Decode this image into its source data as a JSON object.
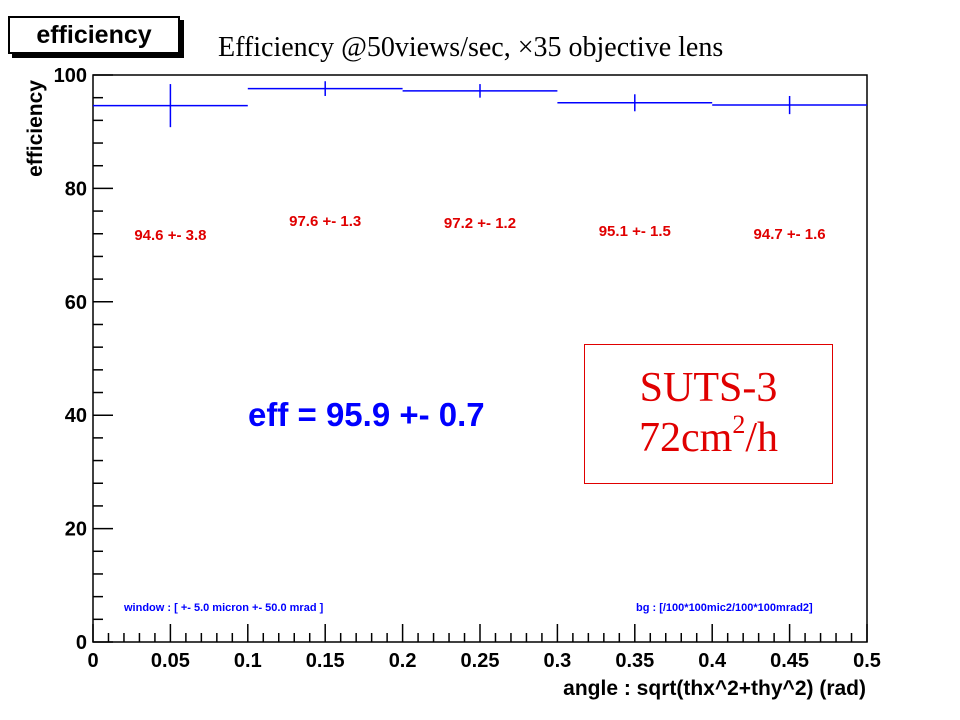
{
  "header": {
    "hist_title": "efficiency",
    "subtitle": "Efficiency @50views/sec, ×35 objective lens"
  },
  "annotations": {
    "total_eff": "eff = 95.9 +- 0.7",
    "window_note": "window : [ +- 5.0 micron  +- 50.0 mrad ]",
    "bg_note": "bg : [/100*100mic2/100*100mrad2]",
    "suts_line1": "SUTS-3",
    "suts_line2_base": "72cm",
    "suts_line2_sup": "2",
    "suts_line2_tail": "/h"
  },
  "colors": {
    "series": "#0000ff",
    "labels": "#e00000",
    "axis": "#000000"
  },
  "chart_data": {
    "type": "bar",
    "title": "efficiency",
    "xlabel": "angle : sqrt(thx^2+thy^2) (rad)",
    "ylabel": "efficiency",
    "xlim": [
      0,
      0.5
    ],
    "ylim": [
      0,
      100
    ],
    "x_ticks": [
      "0",
      "0.05",
      "0.1",
      "0.15",
      "0.2",
      "0.25",
      "0.3",
      "0.35",
      "0.4",
      "0.45",
      "0.5"
    ],
    "y_ticks": [
      "0",
      "20",
      "40",
      "60",
      "80",
      "100"
    ],
    "grid": false,
    "series": [
      {
        "bins": [
          {
            "x_low": 0.0,
            "x_high": 0.1,
            "value": 94.6,
            "error": 3.8,
            "label": "94.6 +- 3.8"
          },
          {
            "x_low": 0.1,
            "x_high": 0.2,
            "value": 97.6,
            "error": 1.3,
            "label": "97.6 +- 1.3"
          },
          {
            "x_low": 0.2,
            "x_high": 0.3,
            "value": 97.2,
            "error": 1.2,
            "label": "97.2 +- 1.2"
          },
          {
            "x_low": 0.3,
            "x_high": 0.4,
            "value": 95.1,
            "error": 1.5,
            "label": "95.1 +- 1.5"
          },
          {
            "x_low": 0.4,
            "x_high": 0.5,
            "value": 94.7,
            "error": 1.6,
            "label": "94.7 +- 1.6"
          }
        ]
      }
    ]
  }
}
